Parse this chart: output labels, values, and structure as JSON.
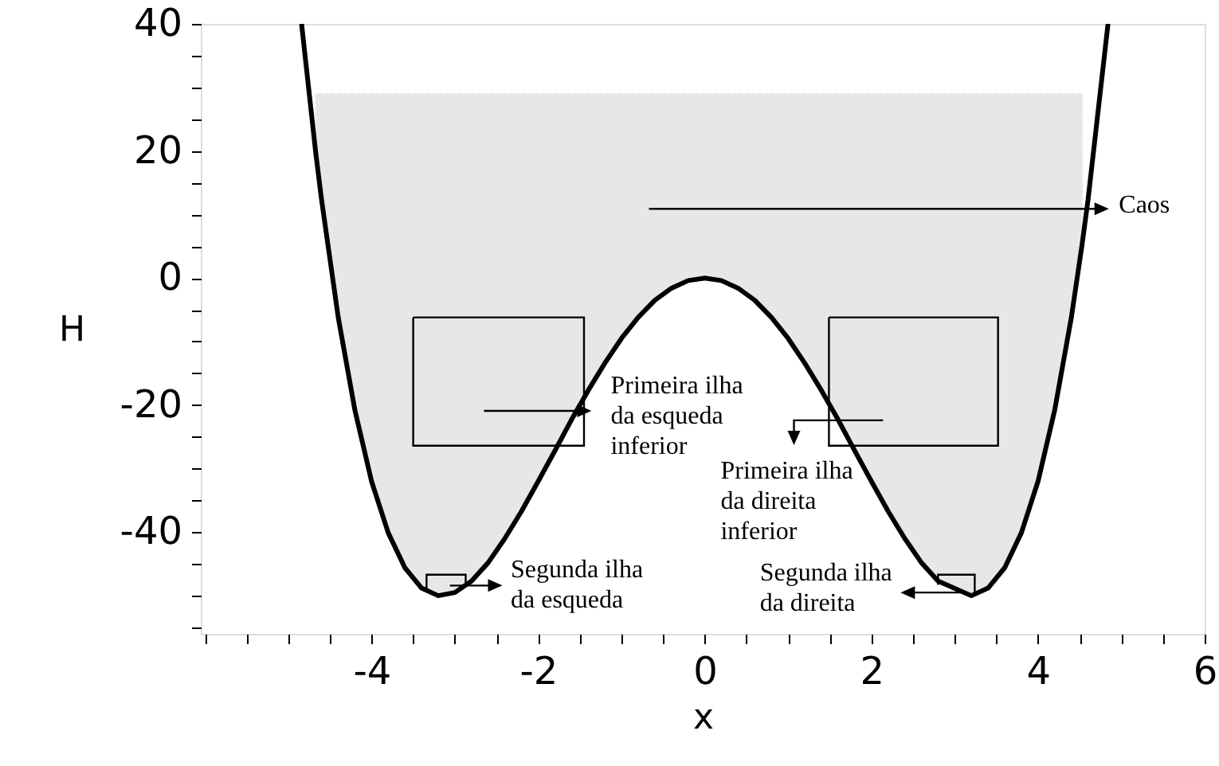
{
  "chart_data": {
    "type": "line",
    "xlabel": "x",
    "ylabel": "H",
    "xlim": [
      -6.05,
      6
    ],
    "ylim": [
      -56,
      40
    ],
    "xticks": [
      {
        "value": -6,
        "label": null
      },
      {
        "value": -5.5,
        "label": null
      },
      {
        "value": -5,
        "label": null
      },
      {
        "value": -4.5,
        "label": null
      },
      -4,
      {
        "value": -3.5,
        "label": null
      },
      {
        "value": -3,
        "label": null
      },
      {
        "value": -2.5,
        "label": null
      },
      -2,
      {
        "value": -1.5,
        "label": null
      },
      {
        "value": -1,
        "label": null
      },
      {
        "value": -0.5,
        "label": null
      },
      0,
      {
        "value": 0.5,
        "label": null
      },
      {
        "value": 1,
        "label": null
      },
      {
        "value": 1.5,
        "label": null
      },
      2,
      {
        "value": 2.5,
        "label": null
      },
      {
        "value": 3,
        "label": null
      },
      {
        "value": 3.5,
        "label": null
      },
      4,
      {
        "value": 4.5,
        "label": null
      },
      {
        "value": 5,
        "label": null
      },
      {
        "value": 5.5,
        "label": null
      },
      6
    ],
    "yticks": [
      {
        "value": -55,
        "label": null
      },
      {
        "value": -50,
        "label": null
      },
      {
        "value": -45,
        "label": null
      },
      -40,
      {
        "value": -35,
        "label": null
      },
      {
        "value": -30,
        "label": null
      },
      {
        "value": -25,
        "label": null
      },
      -20,
      {
        "value": -15,
        "label": null
      },
      {
        "value": -10,
        "label": null
      },
      {
        "value": -5,
        "label": null
      },
      0,
      {
        "value": 5,
        "label": null
      },
      {
        "value": 10,
        "label": null
      },
      {
        "value": 15,
        "label": null
      },
      20,
      {
        "value": 25,
        "label": null
      },
      {
        "value": 30,
        "label": null
      },
      {
        "value": 35,
        "label": null
      },
      40
    ],
    "grid": false,
    "series": [
      {
        "color": "#000000",
        "x": [
          -4.84,
          -4.67,
          -4.6,
          -4.4,
          -4.2,
          -4.0,
          -3.8,
          -3.6,
          -3.4,
          -3.2,
          -3.0,
          -2.8,
          -2.6,
          -2.4,
          -2.2,
          -2.0,
          -1.8,
          -1.6,
          -1.4,
          -1.2,
          -1.0,
          -0.8,
          -0.6,
          -0.4,
          -0.2,
          0,
          0.2,
          0.4,
          0.6,
          0.8,
          1.0,
          1.2,
          1.4,
          1.6,
          1.8,
          2.0,
          2.2,
          2.4,
          2.6,
          2.8,
          3.2,
          3.4,
          3.6,
          3.8,
          4.0,
          4.2,
          4.4,
          4.53,
          4.6,
          4.84
        ],
        "values": [
          40,
          19.7,
          12.3,
          -6.2,
          -20.8,
          -32,
          -40.1,
          -45.6,
          -48.8,
          -50,
          -49.5,
          -47.7,
          -44.8,
          -41,
          -36.7,
          -32,
          -27.2,
          -22.3,
          -17.7,
          -13.4,
          -9.5,
          -6.2,
          -3.5,
          -1.6,
          -0.4,
          0,
          -0.4,
          -1.6,
          -3.5,
          -6.2,
          -9.5,
          -13.4,
          -17.7,
          -22.3,
          -27.2,
          -32,
          -36.7,
          -41,
          -44.8,
          -47.7,
          -50,
          -48.8,
          -45.6,
          -40.1,
          -32,
          -20.8,
          -6.2,
          5.4,
          12.3,
          40
        ],
        "lower": [
          null,
          19.7,
          12.3,
          -6.2,
          -20.8,
          -32,
          -40.1,
          -45.6,
          -48.8,
          -50,
          -49.5,
          -47.7,
          -44.8,
          -41,
          -36.7,
          -32,
          -27.2,
          -22.3,
          -17.7,
          -13.4,
          -9.5,
          -6.2,
          -3.5,
          -1.6,
          -0.4,
          0,
          -0.4,
          -1.6,
          -3.5,
          -6.2,
          -9.5,
          -13.4,
          -17.7,
          -22.3,
          -27.2,
          -32,
          -36.7,
          -41,
          -44.8,
          -47.7,
          -50,
          -48.8,
          -45.6,
          -40.1,
          -32,
          -20.8,
          -6.2,
          5.4,
          null,
          null
        ],
        "upper": [
          null,
          29,
          29,
          29,
          29,
          29,
          29,
          29,
          29,
          29,
          29,
          29,
          29,
          29,
          29,
          29,
          29,
          29,
          29,
          29,
          29,
          29,
          29,
          29,
          29,
          29,
          29,
          29,
          29,
          29,
          29,
          29,
          29,
          29,
          29,
          29,
          29,
          29,
          29,
          29,
          29,
          29,
          29,
          29,
          29,
          29,
          29,
          29,
          null,
          null
        ]
      }
    ],
    "annotations": [
      "Caos",
      "Primeira ilha\nda esqueda\ninferior",
      "Primeira ilha\nda direita\ninferior",
      "Segunda  ilha\nda esqueda",
      "Segunda  ilha\nda direita"
    ]
  }
}
